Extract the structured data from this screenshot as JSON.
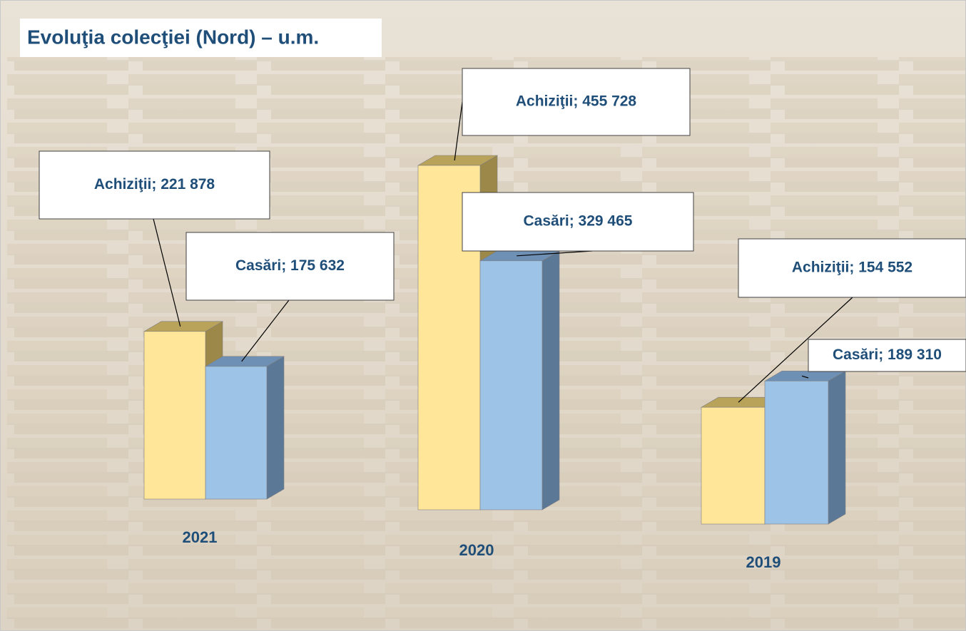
{
  "chart_data": {
    "type": "bar3d",
    "title": "Evoluţia colecţiei (Nord) – u.m.",
    "categories": [
      "2021",
      "2020",
      "2019"
    ],
    "series": [
      {
        "name": "Achiziţii",
        "color": "#ffe699",
        "values": [
          221878,
          455728,
          154552
        ],
        "value_labels": [
          "Achiziţii; 221 878",
          "Achiziţii; 455 728",
          "Achiziţii; 154 552"
        ]
      },
      {
        "name": "Casări",
        "color": "#9dc3e6",
        "values": [
          175632,
          329465,
          189310
        ],
        "value_labels": [
          "Casări; 175 632",
          "Casări; 329 465",
          "Casări; 189 310"
        ]
      }
    ]
  }
}
